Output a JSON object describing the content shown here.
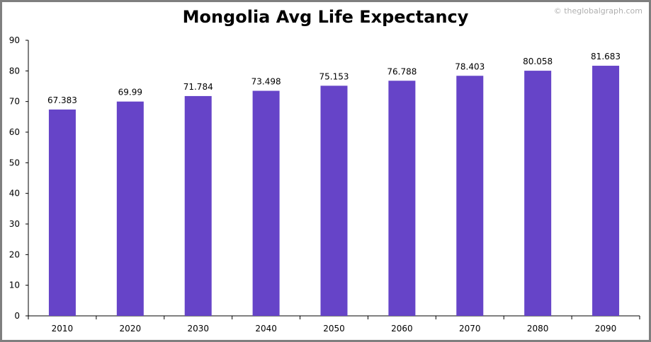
{
  "chart_data": {
    "type": "bar",
    "title": "Mongolia Avg Life Expectancy",
    "categories": [
      "2010",
      "2020",
      "2030",
      "2040",
      "2050",
      "2060",
      "2070",
      "2080",
      "2090"
    ],
    "values": [
      67.383,
      69.99,
      71.784,
      73.498,
      75.153,
      76.788,
      78.403,
      80.058,
      81.683
    ],
    "value_labels": [
      "67.383",
      "69.99",
      "71.784",
      "73.498",
      "75.153",
      "76.788",
      "78.403",
      "80.058",
      "81.683"
    ],
    "xlabel": "",
    "ylabel": "",
    "ylim": [
      0,
      90
    ],
    "yticks": [
      0,
      10,
      20,
      30,
      40,
      50,
      60,
      70,
      80,
      90
    ],
    "bar_color": "#6644c8",
    "grid": false,
    "watermark": "© theglobalgraph.com"
  }
}
